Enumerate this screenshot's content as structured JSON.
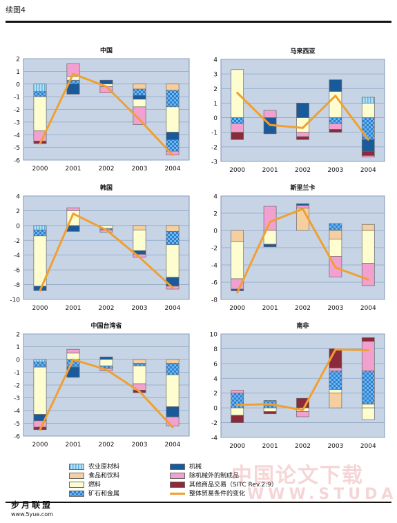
{
  "figure_title": "续图4",
  "legend": [
    {
      "key": "agri",
      "label": "农业原材料",
      "color": "#8fd0f0",
      "pattern": "vstripe"
    },
    {
      "key": "food",
      "label": "食品和饮料",
      "color": "#f5cfa0",
      "pattern": "solid"
    },
    {
      "key": "fuel",
      "label": "燃料",
      "color": "#fdfdd0",
      "pattern": "solid"
    },
    {
      "key": "ores",
      "label": "矿石和金属",
      "color": "#2a7fd0",
      "pattern": "checker"
    },
    {
      "key": "mach",
      "label": "机械",
      "color": "#1a5a9a",
      "pattern": "solid"
    },
    {
      "key": "manu",
      "label": "除机械外的制成品",
      "color": "#f2a0d0",
      "pattern": "solid"
    },
    {
      "key": "other",
      "label": "其他商品交易（SITC Rev.2:9）",
      "color": "#8a2a3a",
      "pattern": "solid"
    },
    {
      "key": "tot",
      "label": "整体贸易条件的变化",
      "color": "#f0a030",
      "pattern": "line"
    }
  ],
  "chart_data": [
    {
      "type": "bar",
      "title": "中国",
      "categories": [
        "2000",
        "2001",
        "2002",
        "2003",
        "2004"
      ],
      "ylim": [
        -6,
        2
      ],
      "yticks": [
        -6,
        -5,
        -4,
        -3,
        -2,
        -1,
        0,
        1,
        2
      ],
      "stacks": [
        [
          [
            "agri",
            -0.6
          ],
          [
            "ores",
            -0.4
          ],
          [
            "fuel",
            -2.7
          ],
          [
            "food",
            0
          ],
          [
            "manu",
            -0.8
          ],
          [
            "other",
            -0.2
          ]
        ],
        [
          [
            "ores",
            0.3
          ],
          [
            "fuel",
            0.3
          ],
          [
            "manu",
            1.0
          ],
          [
            "mach",
            -0.8
          ]
        ],
        [
          [
            "mach",
            0.3
          ],
          [
            "fuel",
            -0.2
          ],
          [
            "manu",
            -0.5
          ]
        ],
        [
          [
            "food",
            -0.4
          ],
          [
            "ores",
            -0.5
          ],
          [
            "mach",
            -0.3
          ],
          [
            "fuel",
            -0.6
          ],
          [
            "manu",
            -1.4
          ]
        ],
        [
          [
            "food",
            -0.5
          ],
          [
            "ores",
            -1.3
          ],
          [
            "fuel",
            -2.0
          ],
          [
            "mach",
            -0.6
          ],
          [
            "ores",
            -0.9
          ],
          [
            "manu",
            -0.3
          ]
        ]
      ],
      "line": [
        -4.7,
        0.8,
        -0.2,
        -2.8,
        -5.6
      ]
    },
    {
      "type": "bar",
      "title": "马来西亚",
      "categories": [
        "2000",
        "2001",
        "2002",
        "2003",
        "2004"
      ],
      "ylim": [
        -3,
        4
      ],
      "yticks": [
        -3,
        -2,
        -1,
        0,
        1,
        2,
        3,
        4
      ],
      "stacks": [
        [
          [
            "fuel",
            3.3
          ],
          [
            "ores",
            -0.4
          ],
          [
            "manu",
            -0.6
          ],
          [
            "other",
            -0.5
          ]
        ],
        [
          [
            "manu",
            0.5
          ],
          [
            "mach",
            -1.1
          ]
        ],
        [
          [
            "mach",
            1.0
          ],
          [
            "fuel",
            -1.0
          ],
          [
            "manu",
            -0.3
          ],
          [
            "other",
            -0.2
          ]
        ],
        [
          [
            "fuel",
            1.8
          ],
          [
            "mach",
            0.8
          ],
          [
            "ores",
            -0.4
          ],
          [
            "manu",
            -0.4
          ],
          [
            "other",
            -0.2
          ]
        ],
        [
          [
            "fuel",
            1.0
          ],
          [
            "agri",
            0.4
          ],
          [
            "ores",
            -1.5
          ],
          [
            "mach",
            -0.8
          ],
          [
            "other",
            -0.3
          ],
          [
            "manu",
            -0.1
          ]
        ]
      ],
      "line": [
        1.7,
        -0.5,
        -0.7,
        1.5,
        -1.5
      ]
    },
    {
      "type": "bar",
      "title": "韩国",
      "categories": [
        "2000",
        "2001",
        "2002",
        "2003",
        "2004"
      ],
      "ylim": [
        -10,
        4
      ],
      "yticks": [
        -10,
        -8,
        -6,
        -4,
        -2,
        0,
        2,
        4
      ],
      "stacks": [
        [
          [
            "agri",
            -0.6
          ],
          [
            "ores",
            -0.8
          ],
          [
            "fuel",
            -6.8
          ],
          [
            "mach",
            -0.6
          ]
        ],
        [
          [
            "fuel",
            2.0
          ],
          [
            "manu",
            0.4
          ],
          [
            "mach",
            -0.8
          ]
        ],
        [
          [
            "fuel",
            -0.4
          ],
          [
            "ores",
            -0.2
          ],
          [
            "manu",
            -0.3
          ]
        ],
        [
          [
            "food",
            -0.6
          ],
          [
            "fuel",
            -2.8
          ],
          [
            "mach",
            -0.5
          ],
          [
            "manu",
            -0.4
          ]
        ],
        [
          [
            "food",
            -0.8
          ],
          [
            "ores",
            -1.8
          ],
          [
            "fuel",
            -4.4
          ],
          [
            "mach",
            -1.2
          ],
          [
            "manu",
            -0.4
          ]
        ]
      ],
      "line": [
        -8.8,
        1.6,
        -0.6,
        -4.3,
        -8.4
      ]
    },
    {
      "type": "bar",
      "title": "斯里兰卡",
      "categories": [
        "2000",
        "2001",
        "2002",
        "2003",
        "2004"
      ],
      "ylim": [
        -8,
        4
      ],
      "yticks": [
        -8,
        -6,
        -4,
        -2,
        0,
        2,
        4
      ],
      "stacks": [
        [
          [
            "food",
            -1.3
          ],
          [
            "fuel",
            -4.3
          ],
          [
            "manu",
            -1.2
          ],
          [
            "mach",
            -0.2
          ]
        ],
        [
          [
            "manu",
            2.8
          ],
          [
            "fuel",
            -1.6
          ],
          [
            "mach",
            -0.3
          ]
        ],
        [
          [
            "food",
            2.6
          ],
          [
            "manu",
            0.3
          ],
          [
            "mach",
            0.2
          ]
        ],
        [
          [
            "ores",
            0.8
          ],
          [
            "food",
            -1.0
          ],
          [
            "fuel",
            -2.0
          ],
          [
            "manu",
            -2.4
          ]
        ],
        [
          [
            "food",
            0.7
          ],
          [
            "fuel",
            -3.8
          ],
          [
            "manu",
            -2.6
          ]
        ]
      ],
      "line": [
        -7.2,
        1.0,
        2.5,
        -4.3,
        -5.7
      ]
    },
    {
      "type": "bar",
      "title": "中国台湾省",
      "categories": [
        "2000",
        "2001",
        "2002",
        "2003",
        "2004"
      ],
      "ylim": [
        -6,
        2
      ],
      "yticks": [
        -6,
        -5,
        -4,
        -3,
        -2,
        -1,
        0,
        1,
        2
      ],
      "stacks": [
        [
          [
            "agri",
            -0.2
          ],
          [
            "ores",
            -0.4
          ],
          [
            "fuel",
            -3.7
          ],
          [
            "mach",
            -0.5
          ],
          [
            "manu",
            -0.5
          ],
          [
            "other",
            -0.2
          ]
        ],
        [
          [
            "fuel",
            0.5
          ],
          [
            "manu",
            0.3
          ],
          [
            "ores",
            -0.6
          ],
          [
            "mach",
            -0.8
          ]
        ],
        [
          [
            "mach",
            0.2
          ],
          [
            "fuel",
            -0.5
          ],
          [
            "ores",
            -0.2
          ],
          [
            "manu",
            -0.2
          ]
        ],
        [
          [
            "food",
            -0.3
          ],
          [
            "ores",
            -0.2
          ],
          [
            "fuel",
            -1.4
          ],
          [
            "manu",
            -0.5
          ],
          [
            "other",
            -0.2
          ]
        ],
        [
          [
            "food",
            -0.3
          ],
          [
            "ores",
            -0.9
          ],
          [
            "fuel",
            -2.5
          ],
          [
            "mach",
            -0.8
          ],
          [
            "manu",
            -0.7
          ]
        ]
      ],
      "line": [
        -5.5,
        0.0,
        -0.8,
        -2.5,
        -5.3
      ]
    },
    {
      "type": "bar",
      "title": "南非",
      "categories": [
        "2000",
        "2001",
        "2002",
        "2003",
        "2004"
      ],
      "ylim": [
        -4,
        10
      ],
      "yticks": [
        -4,
        -2,
        0,
        2,
        4,
        6,
        8,
        10
      ],
      "stacks": [
        [
          [
            "ores",
            2.0
          ],
          [
            "manu",
            0.4
          ],
          [
            "fuel",
            -1.0
          ],
          [
            "other",
            -1.0
          ]
        ],
        [
          [
            "ores",
            1.0
          ],
          [
            "fuel",
            -0.5
          ],
          [
            "other",
            -0.3
          ]
        ],
        [
          [
            "other",
            1.3
          ],
          [
            "fuel",
            -0.5
          ],
          [
            "manu",
            -0.7
          ]
        ],
        [
          [
            "food",
            2.0
          ],
          [
            "fuel",
            0.5
          ],
          [
            "ores",
            2.5
          ],
          [
            "manu",
            0.4
          ],
          [
            "other",
            2.6
          ]
        ],
        [
          [
            "fuel",
            0.5
          ],
          [
            "ores",
            4.5
          ],
          [
            "manu",
            4.0
          ],
          [
            "other",
            0.5
          ],
          [
            "fuel",
            -1.6
          ]
        ]
      ],
      "line": [
        0.4,
        0.5,
        -0.3,
        7.9,
        7.8
      ]
    }
  ],
  "watermark": {
    "logo": "中国论文下载",
    "url": "WWW.STUDA."
  },
  "brand": {
    "name": "步月联盟",
    "url": "www.5yue.com"
  }
}
